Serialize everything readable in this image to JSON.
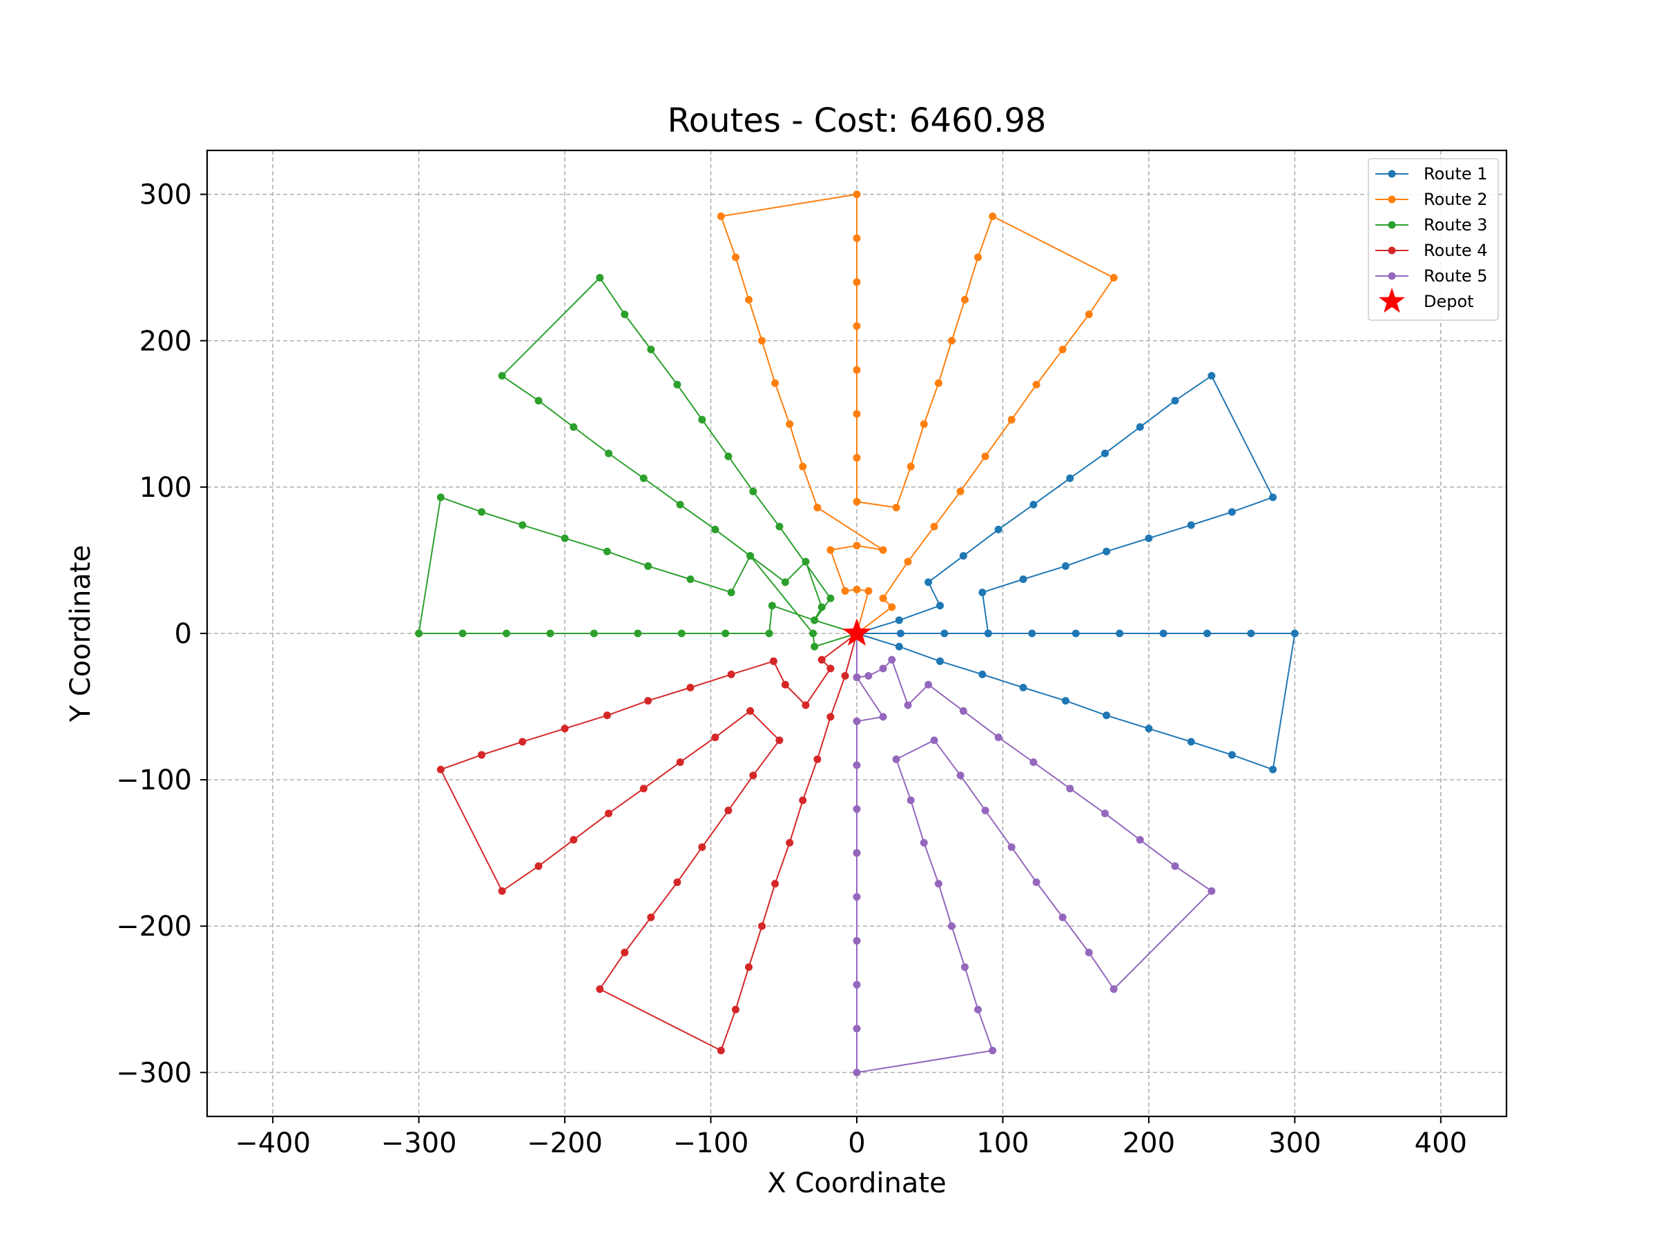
{
  "chart_data": {
    "type": "line",
    "title": "Routes - Cost: 6460.98",
    "xlabel": "X Coordinate",
    "ylabel": "Y Coordinate",
    "xlim": [
      -445,
      445
    ],
    "ylim": [
      -330,
      330
    ],
    "xticks": [
      -400,
      -300,
      -200,
      -100,
      0,
      100,
      200,
      300,
      400
    ],
    "yticks": [
      -300,
      -200,
      -100,
      0,
      100,
      200,
      300
    ],
    "grid": true,
    "legend_position": "top-right",
    "depot": {
      "name": "Depot",
      "x": 0,
      "y": 0,
      "color": "#ff0000",
      "marker": "star"
    },
    "series": [
      {
        "name": "Route 1",
        "color": "#1f77b4",
        "points": [
          [
            0,
            0
          ],
          [
            30,
            0
          ],
          [
            60,
            0
          ],
          [
            90,
            0
          ],
          [
            120,
            0
          ],
          [
            150,
            0
          ],
          [
            180,
            0
          ],
          [
            210,
            0
          ],
          [
            240,
            0
          ],
          [
            270,
            0
          ],
          [
            300,
            0
          ],
          [
            285,
            -93
          ],
          [
            257,
            -83
          ],
          [
            229,
            -74
          ],
          [
            200,
            -65
          ],
          [
            171,
            -56
          ],
          [
            143,
            -46
          ],
          [
            114,
            -37
          ],
          [
            86,
            -28
          ],
          [
            57,
            -19
          ],
          [
            29,
            -9
          ],
          [
            0,
            0
          ],
          [
            29,
            9
          ],
          [
            57,
            19
          ],
          [
            49,
            35
          ],
          [
            73,
            53
          ],
          [
            97,
            71
          ],
          [
            121,
            88
          ],
          [
            146,
            106
          ],
          [
            170,
            123
          ],
          [
            194,
            141
          ],
          [
            218,
            159
          ],
          [
            243,
            176
          ],
          [
            285,
            93
          ],
          [
            257,
            83
          ],
          [
            229,
            74
          ],
          [
            200,
            65
          ],
          [
            171,
            56
          ],
          [
            143,
            46
          ],
          [
            114,
            37
          ],
          [
            86,
            28
          ],
          [
            90,
            0
          ]
        ]
      },
      {
        "name": "Route 2",
        "color": "#ff7f0e",
        "points": [
          [
            0,
            0
          ],
          [
            8,
            29
          ],
          [
            0,
            30
          ],
          [
            -8,
            29
          ],
          [
            -18,
            57
          ],
          [
            0,
            60
          ],
          [
            18,
            57
          ],
          [
            -27,
            86
          ],
          [
            -37,
            114
          ],
          [
            -46,
            143
          ],
          [
            -56,
            171
          ],
          [
            -65,
            200
          ],
          [
            -74,
            228
          ],
          [
            -83,
            257
          ],
          [
            -93,
            285
          ],
          [
            0,
            300
          ],
          [
            0,
            270
          ],
          [
            0,
            240
          ],
          [
            0,
            210
          ],
          [
            0,
            180
          ],
          [
            0,
            150
          ],
          [
            0,
            120
          ],
          [
            0,
            90
          ],
          [
            27,
            86
          ],
          [
            37,
            114
          ],
          [
            46,
            143
          ],
          [
            56,
            171
          ],
          [
            65,
            200
          ],
          [
            74,
            228
          ],
          [
            83,
            257
          ],
          [
            93,
            285
          ],
          [
            176,
            243
          ],
          [
            159,
            218
          ],
          [
            141,
            194
          ],
          [
            123,
            170
          ],
          [
            106,
            146
          ],
          [
            88,
            121
          ],
          [
            71,
            97
          ],
          [
            53,
            73
          ],
          [
            35,
            49
          ],
          [
            18,
            24
          ],
          [
            24,
            18
          ],
          [
            0,
            0
          ]
        ]
      },
      {
        "name": "Route 3",
        "color": "#2ca02c",
        "points": [
          [
            0,
            0
          ],
          [
            -29,
            9
          ],
          [
            -24,
            18
          ],
          [
            -35,
            49
          ],
          [
            -49,
            35
          ],
          [
            -73,
            53
          ],
          [
            -86,
            28
          ],
          [
            -114,
            37
          ],
          [
            -143,
            46
          ],
          [
            -171,
            56
          ],
          [
            -200,
            65
          ],
          [
            -229,
            74
          ],
          [
            -257,
            83
          ],
          [
            -285,
            93
          ],
          [
            -300,
            0
          ],
          [
            -270,
            0
          ],
          [
            -240,
            0
          ],
          [
            -210,
            0
          ],
          [
            -180,
            0
          ],
          [
            -150,
            0
          ],
          [
            -120,
            0
          ],
          [
            -90,
            0
          ],
          [
            -60,
            0
          ],
          [
            -58,
            19
          ],
          [
            -29,
            9
          ],
          [
            -18,
            24
          ],
          [
            -53,
            73
          ],
          [
            -71,
            97
          ],
          [
            -88,
            121
          ],
          [
            -106,
            146
          ],
          [
            -123,
            170
          ],
          [
            -141,
            194
          ],
          [
            -159,
            218
          ],
          [
            -176,
            243
          ],
          [
            -243,
            176
          ],
          [
            -218,
            159
          ],
          [
            -194,
            141
          ],
          [
            -170,
            123
          ],
          [
            -146,
            106
          ],
          [
            -121,
            88
          ],
          [
            -97,
            71
          ],
          [
            -73,
            53
          ],
          [
            -30,
            0
          ],
          [
            -29,
            -9
          ],
          [
            0,
            0
          ]
        ]
      },
      {
        "name": "Route 4",
        "color": "#d62728",
        "points": [
          [
            0,
            0
          ],
          [
            -24,
            -18
          ],
          [
            -18,
            -24
          ],
          [
            -35,
            -49
          ],
          [
            -49,
            -35
          ],
          [
            -57,
            -19
          ],
          [
            -86,
            -28
          ],
          [
            -114,
            -37
          ],
          [
            -143,
            -46
          ],
          [
            -171,
            -56
          ],
          [
            -200,
            -65
          ],
          [
            -229,
            -74
          ],
          [
            -257,
            -83
          ],
          [
            -285,
            -93
          ],
          [
            -243,
            -176
          ],
          [
            -218,
            -159
          ],
          [
            -194,
            -141
          ],
          [
            -170,
            -123
          ],
          [
            -146,
            -106
          ],
          [
            -121,
            -88
          ],
          [
            -97,
            -71
          ],
          [
            -73,
            -53
          ],
          [
            -53,
            -73
          ],
          [
            -71,
            -97
          ],
          [
            -88,
            -121
          ],
          [
            -106,
            -146
          ],
          [
            -123,
            -170
          ],
          [
            -141,
            -194
          ],
          [
            -159,
            -218
          ],
          [
            -176,
            -243
          ],
          [
            -93,
            -285
          ],
          [
            -83,
            -257
          ],
          [
            -74,
            -228
          ],
          [
            -65,
            -200
          ],
          [
            -56,
            -171
          ],
          [
            -46,
            -143
          ],
          [
            -37,
            -114
          ],
          [
            -27,
            -86
          ],
          [
            -18,
            -57
          ],
          [
            -8,
            -29
          ],
          [
            0,
            0
          ]
        ]
      },
      {
        "name": "Route 5",
        "color": "#9467bd",
        "points": [
          [
            0,
            0
          ],
          [
            0,
            -30
          ],
          [
            8,
            -29
          ],
          [
            18,
            -24
          ],
          [
            24,
            -18
          ],
          [
            35,
            -49
          ],
          [
            49,
            -35
          ],
          [
            73,
            -53
          ],
          [
            97,
            -71
          ],
          [
            121,
            -88
          ],
          [
            146,
            -106
          ],
          [
            170,
            -123
          ],
          [
            194,
            -141
          ],
          [
            218,
            -159
          ],
          [
            243,
            -176
          ],
          [
            176,
            -243
          ],
          [
            159,
            -218
          ],
          [
            141,
            -194
          ],
          [
            123,
            -170
          ],
          [
            106,
            -146
          ],
          [
            88,
            -121
          ],
          [
            71,
            -97
          ],
          [
            53,
            -73
          ],
          [
            27,
            -86
          ],
          [
            37,
            -114
          ],
          [
            46,
            -143
          ],
          [
            56,
            -171
          ],
          [
            65,
            -200
          ],
          [
            74,
            -228
          ],
          [
            83,
            -257
          ],
          [
            93,
            -285
          ],
          [
            0,
            -300
          ],
          [
            0,
            -270
          ],
          [
            0,
            -240
          ],
          [
            0,
            -210
          ],
          [
            0,
            -180
          ],
          [
            0,
            -150
          ],
          [
            0,
            -120
          ],
          [
            0,
            -90
          ],
          [
            0,
            -60
          ],
          [
            18,
            -57
          ],
          [
            0,
            -30
          ],
          [
            0,
            0
          ]
        ]
      }
    ]
  }
}
